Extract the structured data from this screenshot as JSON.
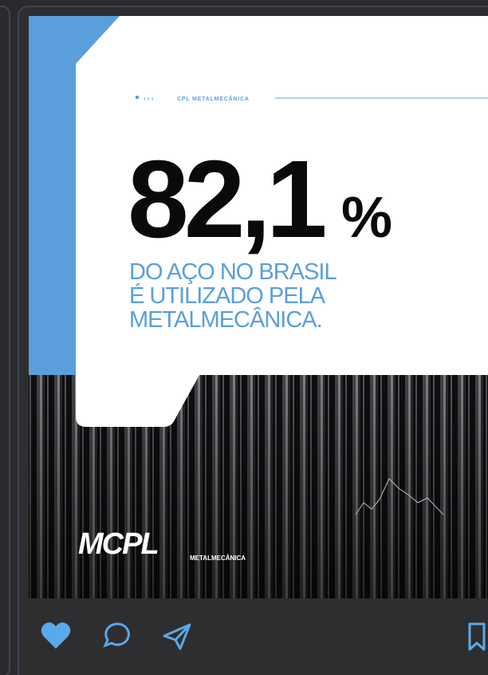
{
  "post": {
    "brand_tag": "CPL METALMECÂNICA",
    "headline_number": "82,1",
    "headline_unit": "%",
    "subtitle_lines": [
      "DO AÇO NO BRASIL",
      "É UTILIZADO PELA",
      "METALMECÂNICA."
    ],
    "logo_mark": "MCPL",
    "logo_subtitle": "METALMECÂNICA"
  }
}
